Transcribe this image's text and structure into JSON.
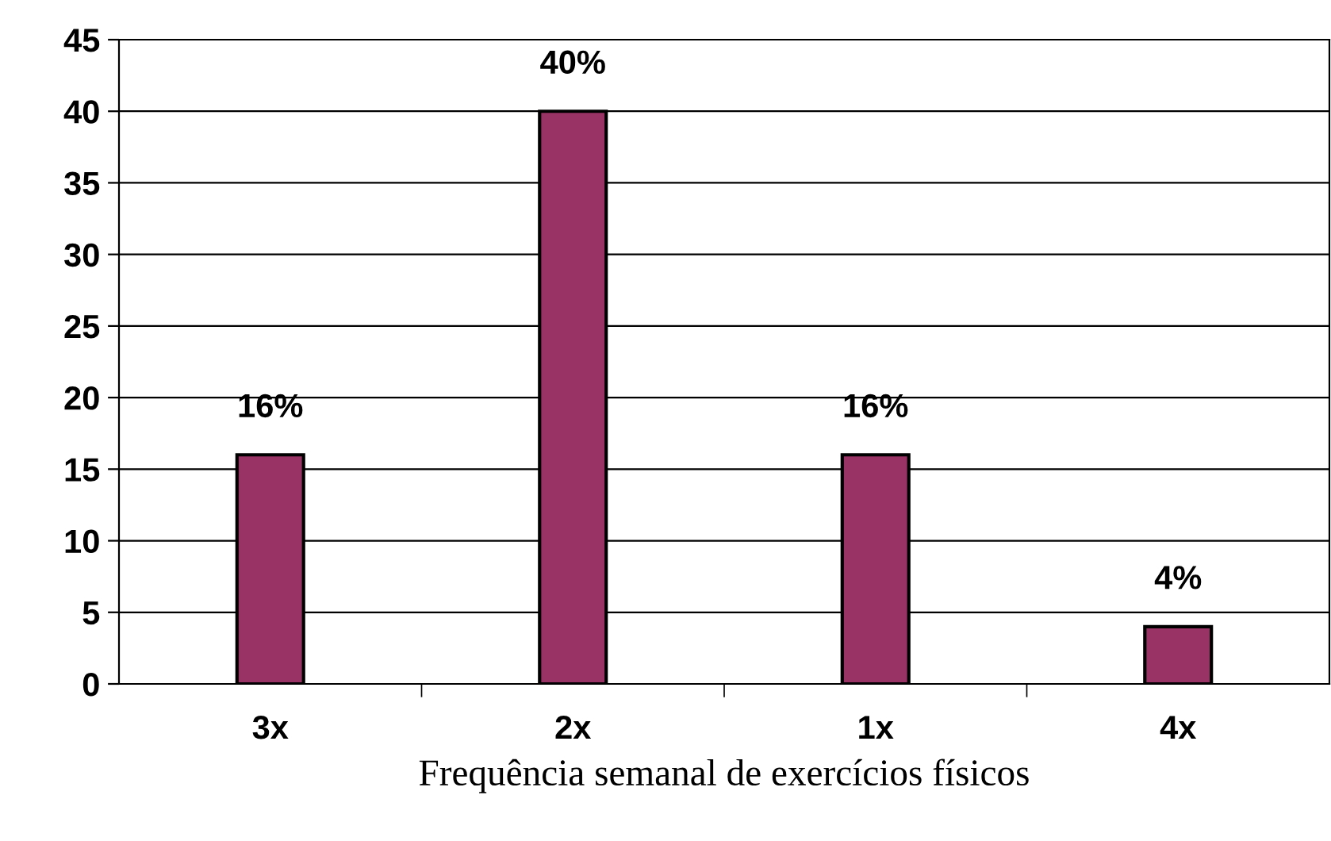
{
  "chart_data": {
    "type": "bar",
    "xlabel": "Frequência semanal de exercícios físicos",
    "categories": [
      "3x",
      "2x",
      "1x",
      "4x"
    ],
    "values": [
      16,
      40,
      16,
      4
    ],
    "value_labels": [
      "16%",
      "40%",
      "16%",
      "4%"
    ],
    "color": "#993366",
    "ylim": [
      0,
      45
    ],
    "yticks": [
      0,
      5,
      10,
      15,
      20,
      25,
      30,
      35,
      40,
      45
    ],
    "grid": "y",
    "legend": false
  }
}
